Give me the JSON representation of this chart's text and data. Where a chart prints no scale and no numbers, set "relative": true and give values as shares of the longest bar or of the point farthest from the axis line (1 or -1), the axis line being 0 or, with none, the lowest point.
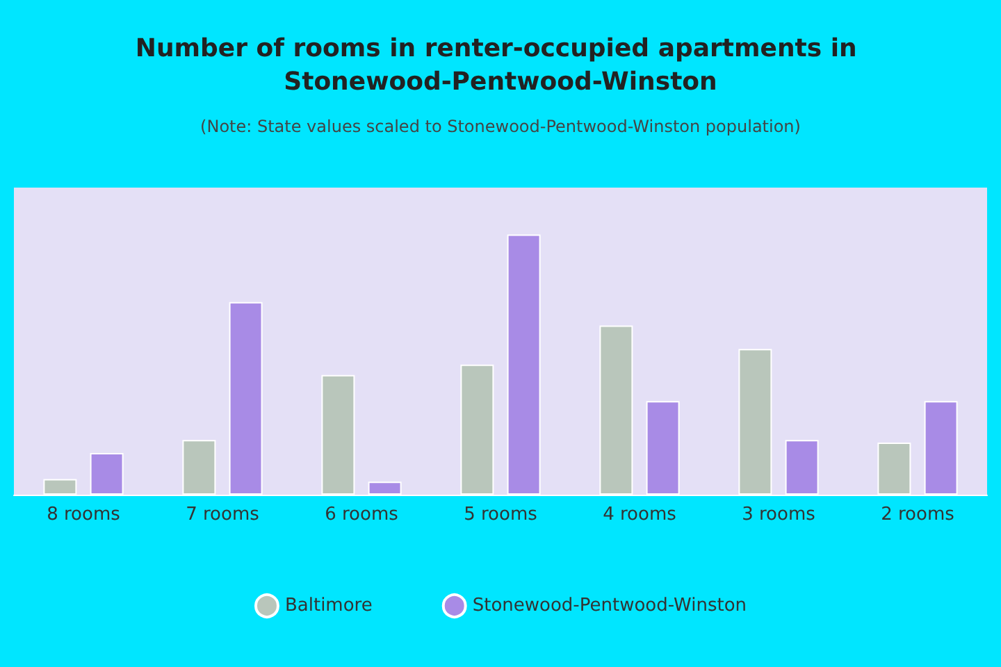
{
  "chart_data": {
    "type": "bar",
    "title": "Number of rooms in renter-occupied apartments in Stonewood-Pentwood-Winston",
    "subtitle": "(Note: State values scaled to Stonewood-Pentwood-Winston population)",
    "categories": [
      "8 rooms",
      "7 rooms",
      "6 rooms",
      "5 rooms",
      "4 rooms",
      "3 rooms",
      "2 rooms"
    ],
    "relative": true,
    "legend": "bottom",
    "series": [
      {
        "name": "Baltimore",
        "color": "#b9c6bb",
        "values": [
          0.06,
          0.21,
          0.46,
          0.5,
          0.65,
          0.56,
          0.2
        ]
      },
      {
        "name": "Stonewood-Pentwood-Winston",
        "color": "#a88be6",
        "values": [
          0.16,
          0.74,
          0.05,
          1.0,
          0.36,
          0.21,
          0.36
        ]
      }
    ]
  }
}
